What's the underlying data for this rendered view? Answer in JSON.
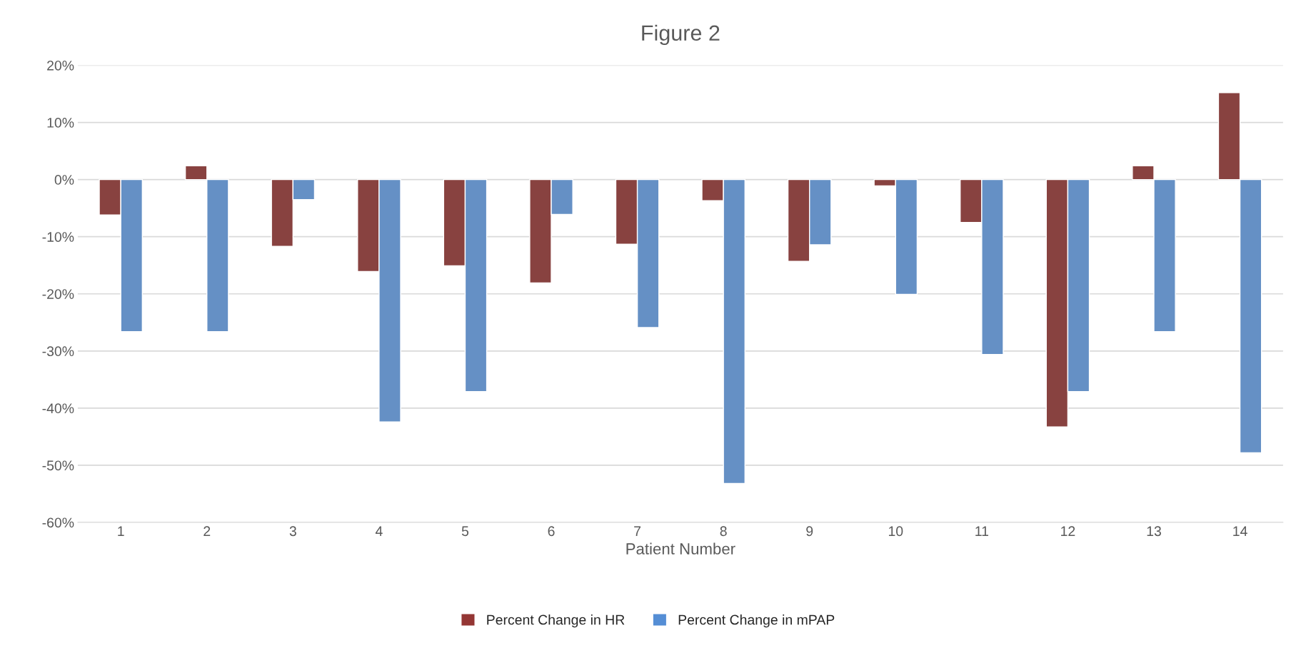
{
  "chart_data": {
    "type": "bar",
    "title": "Figure 2",
    "xlabel": "Patient Number",
    "categories": [
      "1",
      "2",
      "3",
      "4",
      "5",
      "6",
      "7",
      "8",
      "9",
      "10",
      "11",
      "12",
      "13",
      "14"
    ],
    "series": [
      {
        "name": "Percent Change in HR",
        "color": "#943634",
        "values": [
          -6.2,
          2.4,
          -11.7,
          -16.1,
          -15.1,
          -18.1,
          -11.3,
          -3.7,
          -14.3,
          -1.1,
          -7.5,
          -43.3,
          2.4,
          15.2
        ]
      },
      {
        "name": "Percent Change in mPAP",
        "color": "#558ed5",
        "values": [
          -26.6,
          -26.6,
          -3.5,
          -42.4,
          -37.1,
          -6.1,
          -25.9,
          -53.2,
          -11.4,
          -20.1,
          -30.6,
          -37.1,
          -26.6,
          -47.8
        ]
      }
    ],
    "ylim": [
      -60,
      20
    ],
    "yticks": [
      {
        "value": -60,
        "label": "-60%"
      },
      {
        "value": -50,
        "label": "-50%"
      },
      {
        "value": -40,
        "label": "-40%"
      },
      {
        "value": -30,
        "label": "-30%"
      },
      {
        "value": -20,
        "label": "-20%"
      },
      {
        "value": -10,
        "label": "-10%"
      },
      {
        "value": 0,
        "label": "0%"
      },
      {
        "value": 10,
        "label": "10%"
      },
      {
        "value": 20,
        "label": "20%"
      }
    ],
    "grid": "y",
    "legend": "bottom"
  }
}
